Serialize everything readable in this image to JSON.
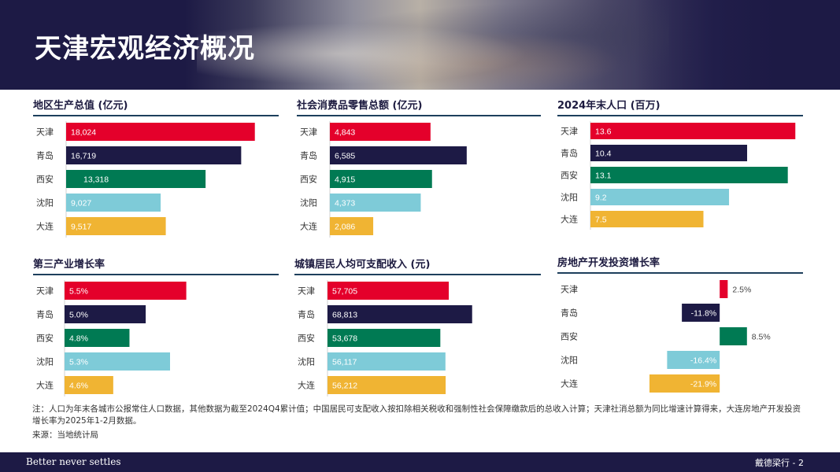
{
  "header": {
    "title": "天津宏观经济概况"
  },
  "colors": {
    "天津": "#e4002b",
    "青岛": "#1d1a45",
    "西安": "#007a53",
    "沈阳": "#7ecbd8",
    "大连": "#f0b433"
  },
  "chart_data": [
    {
      "type": "bar",
      "title": "地区生产总值 (亿元)",
      "categories": [
        "天津",
        "青岛",
        "西安",
        "沈阳",
        "大连"
      ],
      "values": [
        18024,
        16719,
        13318,
        9027,
        9517
      ],
      "labels": [
        "18,024",
        "16,719",
        "13,318",
        "9,027",
        "9,517"
      ],
      "xlim": [
        0,
        20000
      ]
    },
    {
      "type": "bar",
      "title": "社会消费品零售总额 (亿元)",
      "categories": [
        "天津",
        "青岛",
        "西安",
        "沈阳",
        "大连"
      ],
      "values": [
        4843,
        6585,
        4915,
        4373,
        2086
      ],
      "labels": [
        "4,843",
        "6,585",
        "4,915",
        "4,373",
        "2,086"
      ],
      "xlim": [
        0,
        10000
      ]
    },
    {
      "type": "bar",
      "title": "2024年末人口 (百万)",
      "categories": [
        "天津",
        "青岛",
        "西安",
        "沈阳",
        "大连"
      ],
      "values": [
        13.6,
        10.4,
        13.1,
        9.2,
        7.5
      ],
      "labels": [
        "13.6",
        "10.4",
        "13.1",
        "9.2",
        "7.5"
      ],
      "xlim": [
        0,
        13.9
      ]
    },
    {
      "type": "bar",
      "title": "第三产业增长率",
      "categories": [
        "天津",
        "青岛",
        "西安",
        "沈阳",
        "大连"
      ],
      "values": [
        5.5,
        5.0,
        4.8,
        5.3,
        4.6
      ],
      "labels": [
        "5.5%",
        "5.0%",
        "4.8%",
        "5.3%",
        "4.6%"
      ],
      "xlim": [
        4.0,
        6.6
      ]
    },
    {
      "type": "bar",
      "title": "城镇居民人均可支配收入 (元)",
      "categories": [
        "天津",
        "青岛",
        "西安",
        "沈阳",
        "大连"
      ],
      "values": [
        57705,
        68813,
        53678,
        56117,
        56212
      ],
      "labels": [
        "57,705",
        "68,813",
        "53,678",
        "56,117",
        "56,212"
      ],
      "xlim": [
        0,
        100000
      ]
    },
    {
      "type": "bar",
      "title": "房地产开发投资增长率",
      "categories": [
        "天津",
        "青岛",
        "西安",
        "沈阳",
        "大连"
      ],
      "values": [
        2.5,
        -11.8,
        8.5,
        -16.4,
        -21.9
      ],
      "labels": [
        "2.5%",
        "-11.8%",
        "8.5%",
        "-16.4%",
        "-21.9%"
      ],
      "xlim": [
        -30,
        25
      ]
    }
  ],
  "note": "注：人口为年末各城市公报常住人口数据，其他数据为截至2024Q4累计值；中国居民可支配收入按扣除相关税收和强制性社会保障缴款后的总收入计算；天津社消总额为同比增速计算得来，大连房地产开发投资增长率为2025年1-2月数据。",
  "source": "来源：当地统计局",
  "footer": {
    "tagline": "Better never settles",
    "page": "戴德梁行 - 2"
  }
}
